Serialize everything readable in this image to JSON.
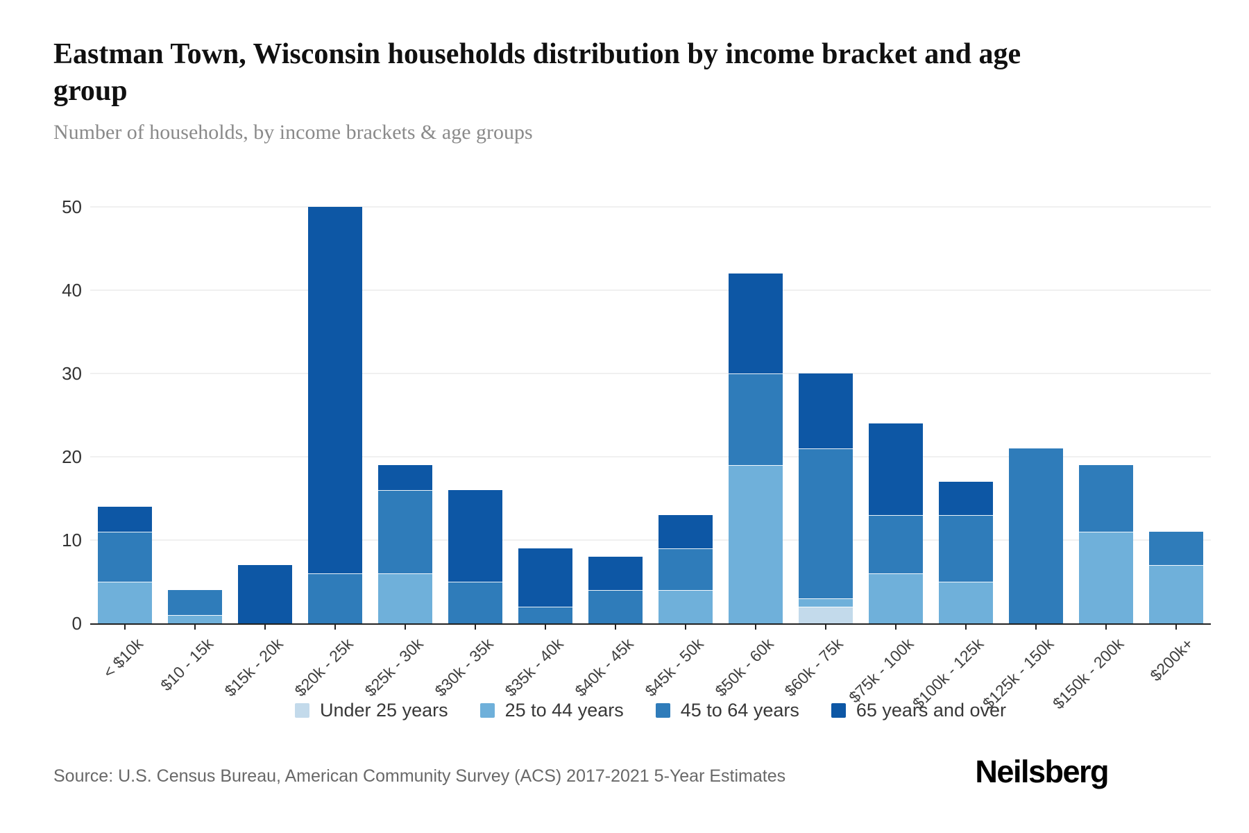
{
  "header": {
    "title": "Eastman Town, Wisconsin households distribution by income bracket and age group",
    "subtitle": "Number of households, by income brackets & age groups"
  },
  "footer": {
    "source": "Source: U.S. Census Bureau, American Community Survey (ACS) 2017-2021 5-Year Estimates",
    "logo": "Neilsberg"
  },
  "chart_data": {
    "type": "bar",
    "stacked": true,
    "title": "Eastman Town, Wisconsin households distribution by income bracket and age group",
    "xlabel": "",
    "ylabel": "Number of households",
    "ylim": [
      0,
      50
    ],
    "yticks": [
      0,
      10,
      20,
      30,
      40,
      50
    ],
    "grid": true,
    "legend_position": "bottom",
    "categories": [
      "< $10k",
      "$10 - 15k",
      "$15k - 20k",
      "$20k - 25k",
      "$25k - 30k",
      "$30k - 35k",
      "$35k - 40k",
      "$40k - 45k",
      "$45k - 50k",
      "$50k - 60k",
      "$60k - 75k",
      "$75k - 100k",
      "$100k - 125k",
      "$125k - 150k",
      "$150k - 200k",
      "$200k+"
    ],
    "series": [
      {
        "name": "Under 25 years",
        "color": "#c3daeb",
        "values": [
          0,
          0,
          0,
          0,
          0,
          0,
          0,
          0,
          0,
          0,
          2,
          0,
          0,
          0,
          0,
          0
        ]
      },
      {
        "name": "25 to 44 years",
        "color": "#6fb0da",
        "values": [
          5,
          1,
          0,
          0,
          6,
          0,
          0,
          0,
          4,
          19,
          1,
          6,
          5,
          0,
          11,
          7
        ]
      },
      {
        "name": "45 to 64 years",
        "color": "#2f7cba",
        "values": [
          6,
          3,
          0,
          6,
          10,
          5,
          2,
          4,
          5,
          11,
          18,
          7,
          8,
          21,
          8,
          4
        ]
      },
      {
        "name": "65 years and over",
        "color": "#0d57a5",
        "values": [
          3,
          0,
          7,
          44,
          3,
          11,
          7,
          4,
          4,
          12,
          9,
          11,
          4,
          0,
          0,
          0
        ]
      }
    ],
    "totals": [
      14,
      4,
      7,
      50,
      19,
      16,
      9,
      8,
      13,
      42,
      30,
      24,
      17,
      21,
      19,
      11
    ]
  }
}
